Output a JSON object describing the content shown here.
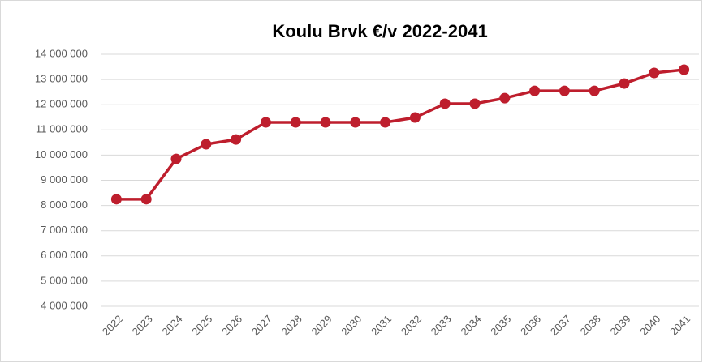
{
  "chart_data": {
    "type": "line",
    "title": "Koulu Brvk €/v 2022-2041",
    "categories": [
      "2022",
      "2023",
      "2024",
      "2025",
      "2026",
      "2027",
      "2028",
      "2029",
      "2030",
      "2031",
      "2032",
      "2033",
      "2034",
      "2035",
      "2036",
      "2037",
      "2038",
      "2039",
      "2040",
      "2041"
    ],
    "series": [
      {
        "name": "Koulu Brvk",
        "color": "#be1e2d",
        "values": [
          8250000,
          8250000,
          9850000,
          10430000,
          10620000,
          11300000,
          11300000,
          11300000,
          11300000,
          11300000,
          11490000,
          12040000,
          12040000,
          12260000,
          12550000,
          12550000,
          12550000,
          12840000,
          13260000,
          13390000
        ]
      }
    ],
    "ylim": [
      4000000,
      14000000
    ],
    "yticks": [
      {
        "value": 4000000,
        "label": "4 000 000"
      },
      {
        "value": 5000000,
        "label": "5 000 000"
      },
      {
        "value": 6000000,
        "label": "6 000 000"
      },
      {
        "value": 7000000,
        "label": "7 000 000"
      },
      {
        "value": 8000000,
        "label": "8 000 000"
      },
      {
        "value": 9000000,
        "label": "9 000 000"
      },
      {
        "value": 10000000,
        "label": "10 000 000"
      },
      {
        "value": 11000000,
        "label": "11 000 000"
      },
      {
        "value": 12000000,
        "label": "12 000 000"
      },
      {
        "value": 13000000,
        "label": "13 000 000"
      },
      {
        "value": 14000000,
        "label": "14 000 000"
      }
    ],
    "grid": true
  }
}
